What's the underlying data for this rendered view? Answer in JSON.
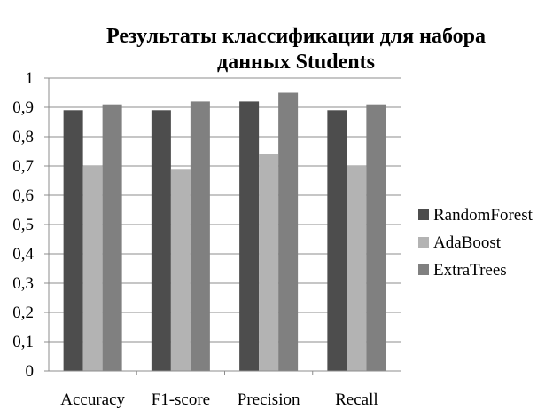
{
  "chart_data": {
    "type": "bar",
    "title_lines": [
      "Результаты классификации для набора",
      "данных Students"
    ],
    "categories": [
      "Accuracy",
      "F1-score",
      "Precision",
      "Recall"
    ],
    "series": [
      {
        "name": "RandomForest",
        "values": [
          0.89,
          0.89,
          0.92,
          0.89
        ]
      },
      {
        "name": "AdaBoost",
        "values": [
          0.7,
          0.69,
          0.74,
          0.7
        ]
      },
      {
        "name": "ExtraTrees",
        "values": [
          0.91,
          0.92,
          0.95,
          0.91
        ]
      }
    ],
    "ylim": [
      0,
      1
    ],
    "y_ticks": [
      "0",
      "0,1",
      "0,2",
      "0,3",
      "0,4",
      "0,5",
      "0,6",
      "0,7",
      "0,8",
      "0,9",
      "1"
    ],
    "grid": true,
    "legend_position": "right",
    "colors": [
      "#4d4d4d",
      "#b3b3b3",
      "#808080"
    ]
  }
}
